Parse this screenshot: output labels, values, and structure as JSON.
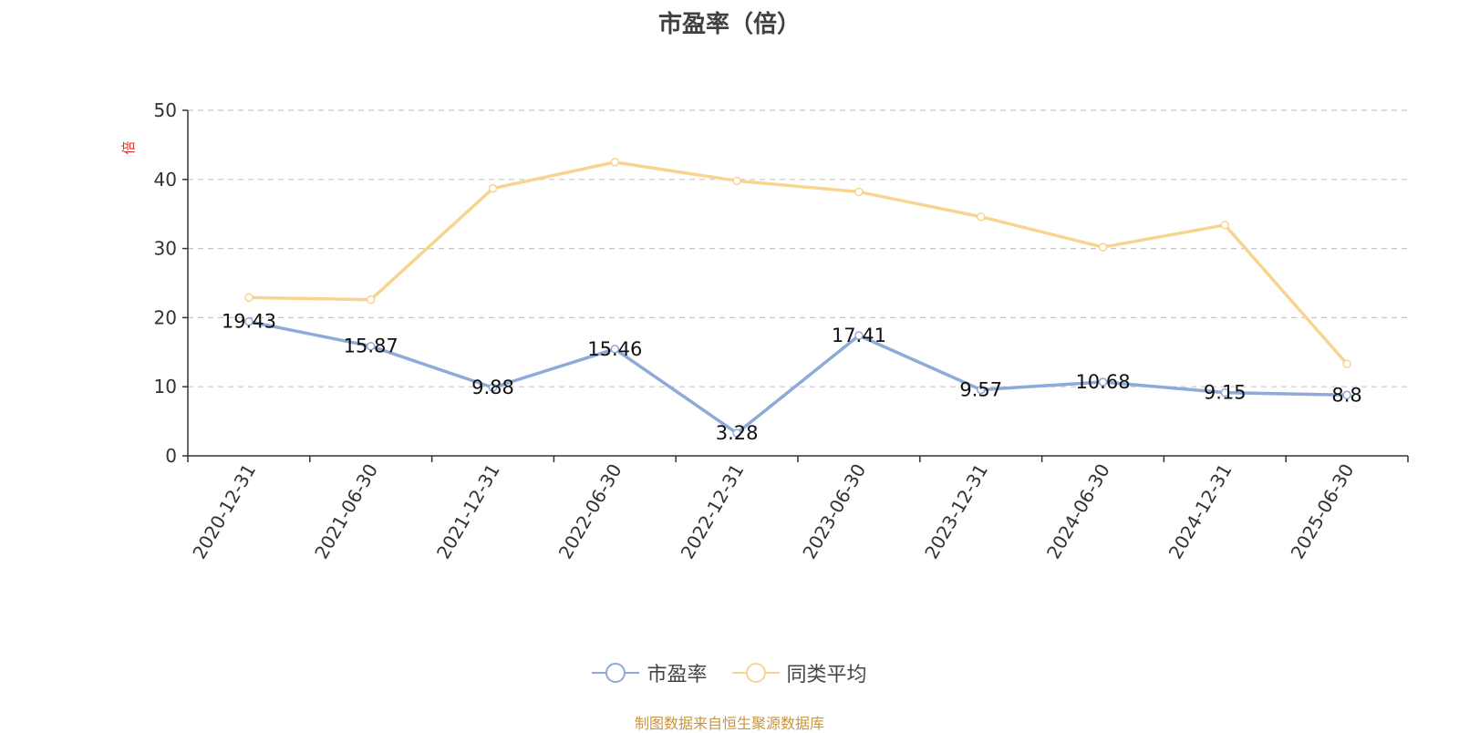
{
  "colors": {
    "pe": "#8eaad8",
    "avg": "#f9d48f",
    "unit": "#e0302a",
    "source": "#c8963e"
  },
  "chart_data": {
    "type": "line",
    "title": "市盈率（倍）",
    "ylabel": "倍",
    "ylim": [
      0,
      50
    ],
    "yticks": [
      0,
      10,
      20,
      30,
      40,
      50
    ],
    "grid": true,
    "legend_position": "bottom",
    "categories": [
      "2020-12-31",
      "2021-06-30",
      "2021-12-31",
      "2022-06-30",
      "2022-12-31",
      "2023-06-30",
      "2023-12-31",
      "2024-06-30",
      "2024-12-31",
      "2025-06-30"
    ],
    "series": [
      {
        "name": "市盈率",
        "values": [
          19.43,
          15.87,
          9.88,
          15.46,
          3.28,
          17.41,
          9.57,
          10.68,
          9.15,
          8.8
        ],
        "labels": [
          "19.43",
          "15.87",
          "9.88",
          "15.46",
          "3.28",
          "17.41",
          "9.57",
          "10.68",
          "9.15",
          "8.8"
        ]
      },
      {
        "name": "同类平均",
        "values": [
          22.9,
          22.6,
          38.7,
          42.5,
          39.8,
          38.2,
          34.6,
          30.2,
          33.4,
          13.3
        ]
      }
    ]
  },
  "legend": {
    "pe_label": "市盈率",
    "avg_label": "同类平均"
  },
  "source_note": "制图数据来自恒生聚源数据库"
}
